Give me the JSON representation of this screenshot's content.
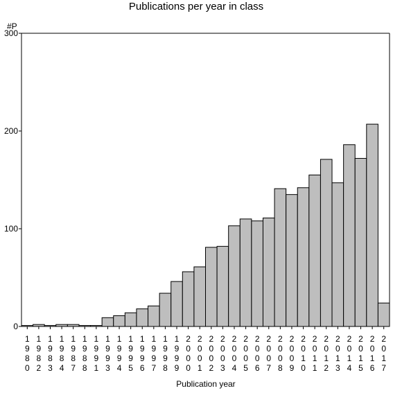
{
  "chart_data": {
    "type": "bar",
    "title": "Publications per year in class",
    "xlabel": "Publication year",
    "ylabel": "#P",
    "ylim": [
      0,
      300
    ],
    "yticks": [
      0,
      100,
      200,
      300
    ],
    "categories": [
      "1980",
      "1982",
      "1983",
      "1984",
      "1987",
      "1988",
      "1991",
      "1993",
      "1994",
      "1995",
      "1996",
      "1997",
      "1998",
      "1999",
      "2000",
      "2001",
      "2002",
      "2003",
      "2004",
      "2005",
      "2006",
      "2007",
      "2008",
      "2009",
      "2010",
      "2011",
      "2012",
      "2013",
      "2014",
      "2015",
      "2016",
      "2017"
    ],
    "values": [
      1,
      2,
      1,
      2,
      2,
      1,
      1,
      9,
      11,
      14,
      18,
      21,
      34,
      46,
      56,
      61,
      81,
      82,
      103,
      110,
      108,
      111,
      141,
      135,
      142,
      155,
      171,
      147,
      186,
      172,
      207,
      24
    ],
    "grid": false,
    "legend": "none",
    "colors": {
      "bar_fill": "#bebebe",
      "bar_stroke": "#000000",
      "axis": "#000000",
      "background": "#ffffff"
    }
  }
}
